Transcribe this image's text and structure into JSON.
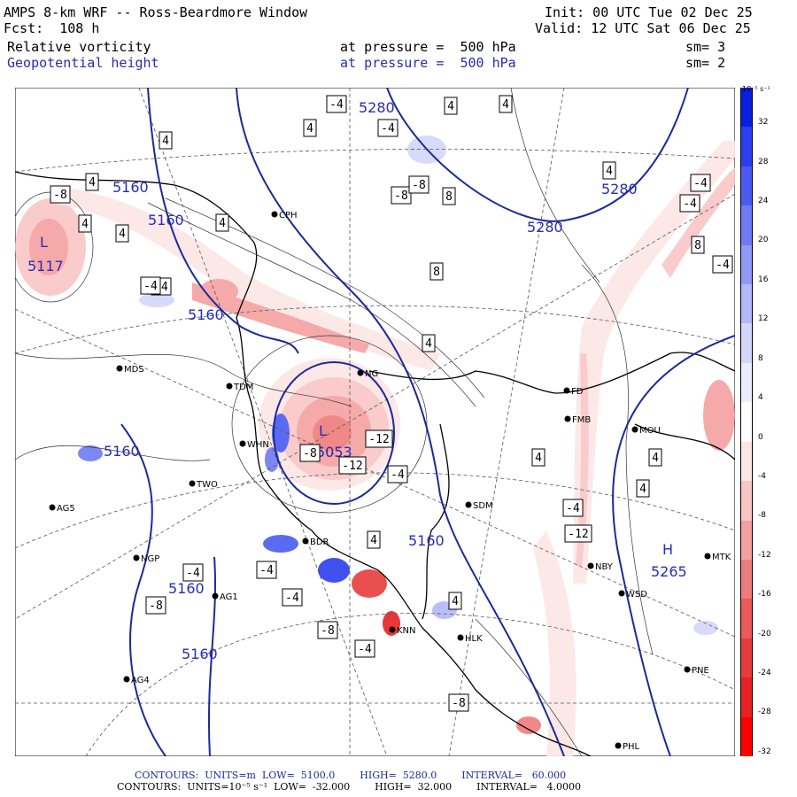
{
  "header": {
    "line1_left": "AMPS 8-km WRF -- Ross-Beardmore Window",
    "line2_left": "Fcst:  108 h",
    "line1_right": "Init: 00 UTC Tue 02 Dec 25",
    "line2_right": "Valid: 12 UTC Sat 06 Dec 25",
    "field1_name": "Relative vorticity",
    "field1_level": "at pressure =  500 hPa",
    "field1_sm": "sm= 3",
    "field2_name": "Geopotential height",
    "field2_level": "at pressure =  500 hPa",
    "field2_sm": "sm= 2"
  },
  "colorbar": {
    "unit": "10⁻⁵ s⁻¹",
    "ticks": [
      "32",
      "28",
      "24",
      "20",
      "16",
      "12",
      "8",
      "4",
      "0",
      "-4",
      "-8",
      "-12",
      "-16",
      "-20",
      "-24",
      "-28",
      "-32"
    ],
    "colors": [
      "#0a1ee0",
      "#2b3ef0",
      "#4a5af2",
      "#6f7af5",
      "#9099f6",
      "#b3b8f8",
      "#d4d7fb",
      "#eceefd",
      "#ffffff",
      "#fde6e6",
      "#f9c6c6",
      "#f4a0a0",
      "#ef7c7c",
      "#ea5a5a",
      "#e73c3c",
      "#e62222",
      "#ff0000"
    ]
  },
  "map": {
    "stations": [
      {
        "id": "CPH"
      },
      {
        "id": "MDS"
      },
      {
        "id": "TDM"
      },
      {
        "id": "WHN"
      },
      {
        "id": "TWO"
      },
      {
        "id": "AG5"
      },
      {
        "id": "NGP"
      },
      {
        "id": "AG1"
      },
      {
        "id": "AG4"
      },
      {
        "id": "BDR"
      },
      {
        "id": "NG"
      },
      {
        "id": "SDM"
      },
      {
        "id": "HLK"
      },
      {
        "id": "KNN"
      },
      {
        "id": "FD"
      },
      {
        "id": "FMB"
      },
      {
        "id": "MOU"
      },
      {
        "id": "NBY"
      },
      {
        "id": "WSD"
      },
      {
        "id": "MTK"
      },
      {
        "id": "PNE"
      },
      {
        "id": "PHL"
      }
    ],
    "height_labels": [
      "5280",
      "5160",
      "5160",
      "5117",
      "5160",
      "5280",
      "5280",
      "5160",
      "5160",
      "5160",
      "5160",
      "5053"
    ],
    "highs_lows": [
      {
        "sym": "L",
        "value": "5117"
      },
      {
        "sym": "L",
        "value": "5053"
      },
      {
        "sym": "H",
        "value": "5265"
      }
    ],
    "vort_boxes": [
      "-4",
      "4",
      "4",
      "4",
      "4",
      "-4",
      "4",
      "4",
      "-8",
      "8",
      "-8",
      "-4",
      "-4",
      "4",
      "4",
      "4",
      "-8",
      "8",
      "-4",
      "-4",
      "-4",
      "-12",
      "-12",
      "-8",
      "-4",
      "4",
      "4",
      "4",
      "-4",
      "-8",
      "-4",
      "4",
      "-4",
      "-8",
      "-4",
      "-8",
      "-12",
      "-4",
      "4",
      "8",
      "4"
    ]
  },
  "footer": {
    "line1": "CONTOURS:  UNITS=m  LOW=  5100.0        HIGH=  5280.0        INTERVAL=   60.000",
    "line2": "CONTOURS:  UNITS=10⁻⁵ s⁻¹  LOW=  -32.000        HIGH=  32.000        INTERVAL=   4.0000"
  }
}
